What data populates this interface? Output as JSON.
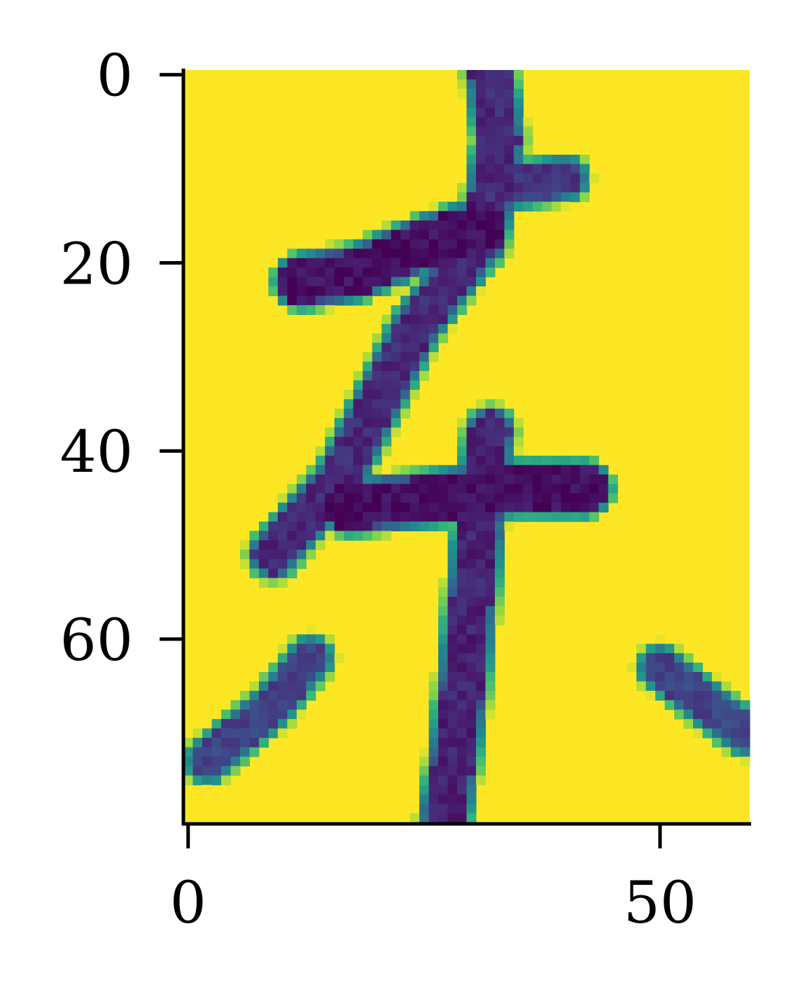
{
  "chart_data": {
    "type": "heatmap",
    "colormap": "viridis",
    "background_color": "#fde725",
    "ink_colors": {
      "dark": "#440154",
      "mid": "#3b528b",
      "edge": "#21918c",
      "light": "#5ec962"
    },
    "x_range": [
      -0.5,
      59.5
    ],
    "y_range": [
      79.5,
      -0.5
    ],
    "x_ticks": [
      0,
      50
    ],
    "y_ticks": [
      0,
      20,
      40,
      60
    ],
    "x_tick_labels": [
      "0",
      "50"
    ],
    "y_tick_labels": [
      "0",
      "20",
      "40",
      "60"
    ],
    "strokes": [
      {
        "name": "upper-vertical",
        "points": [
          [
            32,
            0
          ],
          [
            33,
            7
          ],
          [
            32,
            13
          ],
          [
            31,
            18
          ]
        ],
        "width": 4.0,
        "intensity": 0.85
      },
      {
        "name": "upper-right-arm",
        "points": [
          [
            33,
            12
          ],
          [
            40,
            11
          ]
        ],
        "width": 3.5,
        "intensity": 0.8
      },
      {
        "name": "upper-bar",
        "points": [
          [
            12,
            22
          ],
          [
            18,
            21
          ],
          [
            25,
            18
          ],
          [
            31,
            16
          ]
        ],
        "width": 4.5,
        "intensity": 0.95
      },
      {
        "name": "left-diagonal",
        "points": [
          [
            30,
            19
          ],
          [
            24,
            27
          ],
          [
            20,
            35
          ],
          [
            16,
            43
          ],
          [
            9,
            51
          ]
        ],
        "width": 4.0,
        "intensity": 0.85
      },
      {
        "name": "middle-bar",
        "points": [
          [
            17,
            46
          ],
          [
            26,
            45
          ],
          [
            34,
            44
          ],
          [
            42,
            44
          ]
        ],
        "width": 4.5,
        "intensity": 0.95
      },
      {
        "name": "lower-vertical",
        "points": [
          [
            32,
            38
          ],
          [
            31,
            46
          ],
          [
            30,
            56
          ],
          [
            29,
            66
          ],
          [
            28,
            74
          ],
          [
            27,
            80
          ]
        ],
        "width": 4.0,
        "intensity": 0.88
      },
      {
        "name": "lower-left-stroke",
        "points": [
          [
            13,
            62
          ],
          [
            9,
            67
          ],
          [
            2,
            73
          ]
        ],
        "width": 3.5,
        "intensity": 0.75
      },
      {
        "name": "lower-right-stroke",
        "points": [
          [
            50,
            63
          ],
          [
            55,
            67
          ],
          [
            59,
            70
          ]
        ],
        "width": 3.5,
        "intensity": 0.75
      }
    ]
  }
}
